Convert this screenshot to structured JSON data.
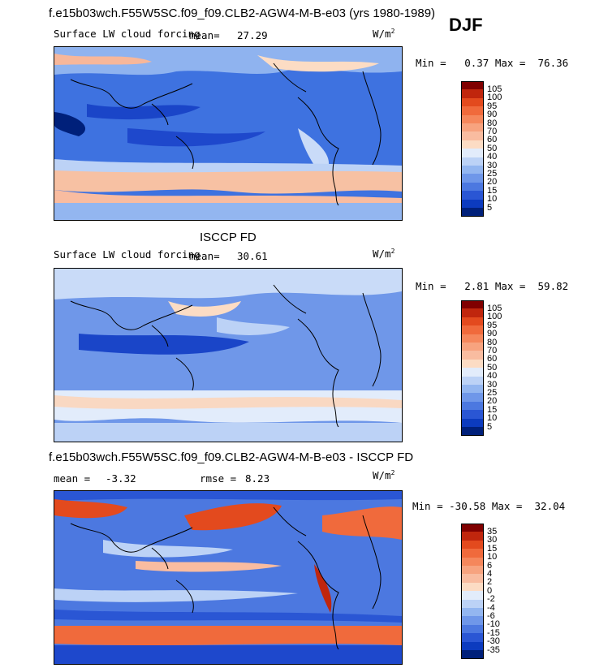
{
  "season": "DJF",
  "panels": [
    {
      "title": "f.e15b03wch.F55W5SC.f09_f09.CLB2-AGW4-M-B-e03 (yrs 1980-1989)",
      "subtitle": "Surface LW cloud forcing",
      "mean_label": "mean=",
      "mean_value": "27.29",
      "units": "W/m",
      "units_sup": "2",
      "min_max": "Min =   0.37 Max =  76.36",
      "colorbar": {
        "labels": [
          "105",
          "100",
          "95",
          "90",
          "80",
          "70",
          "60",
          "50",
          "40",
          "30",
          "25",
          "20",
          "15",
          "10",
          "5"
        ],
        "colors": [
          "#800000",
          "#c0260d",
          "#e34a1e",
          "#f06a3c",
          "#f5875c",
          "#f7a37f",
          "#f9bca0",
          "#fcdcc4",
          "#e2ecfb",
          "#bcd2f6",
          "#93b6f0",
          "#6f97e9",
          "#4c78e0",
          "#2a56d4",
          "#0c3bbf",
          "#00207a"
        ]
      }
    },
    {
      "title": "ISCCP FD",
      "subtitle": "Surface LW cloud forcing",
      "mean_label": "mean=",
      "mean_value": "30.61",
      "units": "W/m",
      "units_sup": "2",
      "min_max": "Min =   2.81 Max =  59.82",
      "colorbar": {
        "labels": [
          "105",
          "100",
          "95",
          "90",
          "80",
          "70",
          "60",
          "50",
          "40",
          "30",
          "25",
          "20",
          "15",
          "10",
          "5"
        ],
        "colors": [
          "#800000",
          "#c0260d",
          "#e34a1e",
          "#f06a3c",
          "#f5875c",
          "#f7a37f",
          "#f9bca0",
          "#fcdcc4",
          "#e2ecfb",
          "#bcd2f6",
          "#93b6f0",
          "#6f97e9",
          "#4c78e0",
          "#2a56d4",
          "#0c3bbf",
          "#00207a"
        ]
      }
    },
    {
      "title": "f.e15b03wch.F55W5SC.f09_f09.CLB2-AGW4-M-B-e03 - ISCCP FD",
      "mean_label": "mean =",
      "mean_value": "-3.32",
      "rmse_label": "rmse =",
      "rmse_value": "8.23",
      "units": "W/m",
      "units_sup": "2",
      "min_max": "Min = -30.58 Max =  32.04",
      "colorbar": {
        "labels": [
          "35",
          "30",
          "15",
          "10",
          "6",
          "4",
          "2",
          "0",
          "-2",
          "-4",
          "-6",
          "-10",
          "-15",
          "-30",
          "-35"
        ],
        "colors": [
          "#800000",
          "#c0260d",
          "#e34a1e",
          "#f06a3c",
          "#f5875c",
          "#f7a37f",
          "#f9bca0",
          "#fcdcc4",
          "#e2ecfb",
          "#bcd2f6",
          "#93b6f0",
          "#6f97e9",
          "#4c78e0",
          "#2a56d4",
          "#0c3bbf",
          "#00207a"
        ]
      }
    }
  ]
}
